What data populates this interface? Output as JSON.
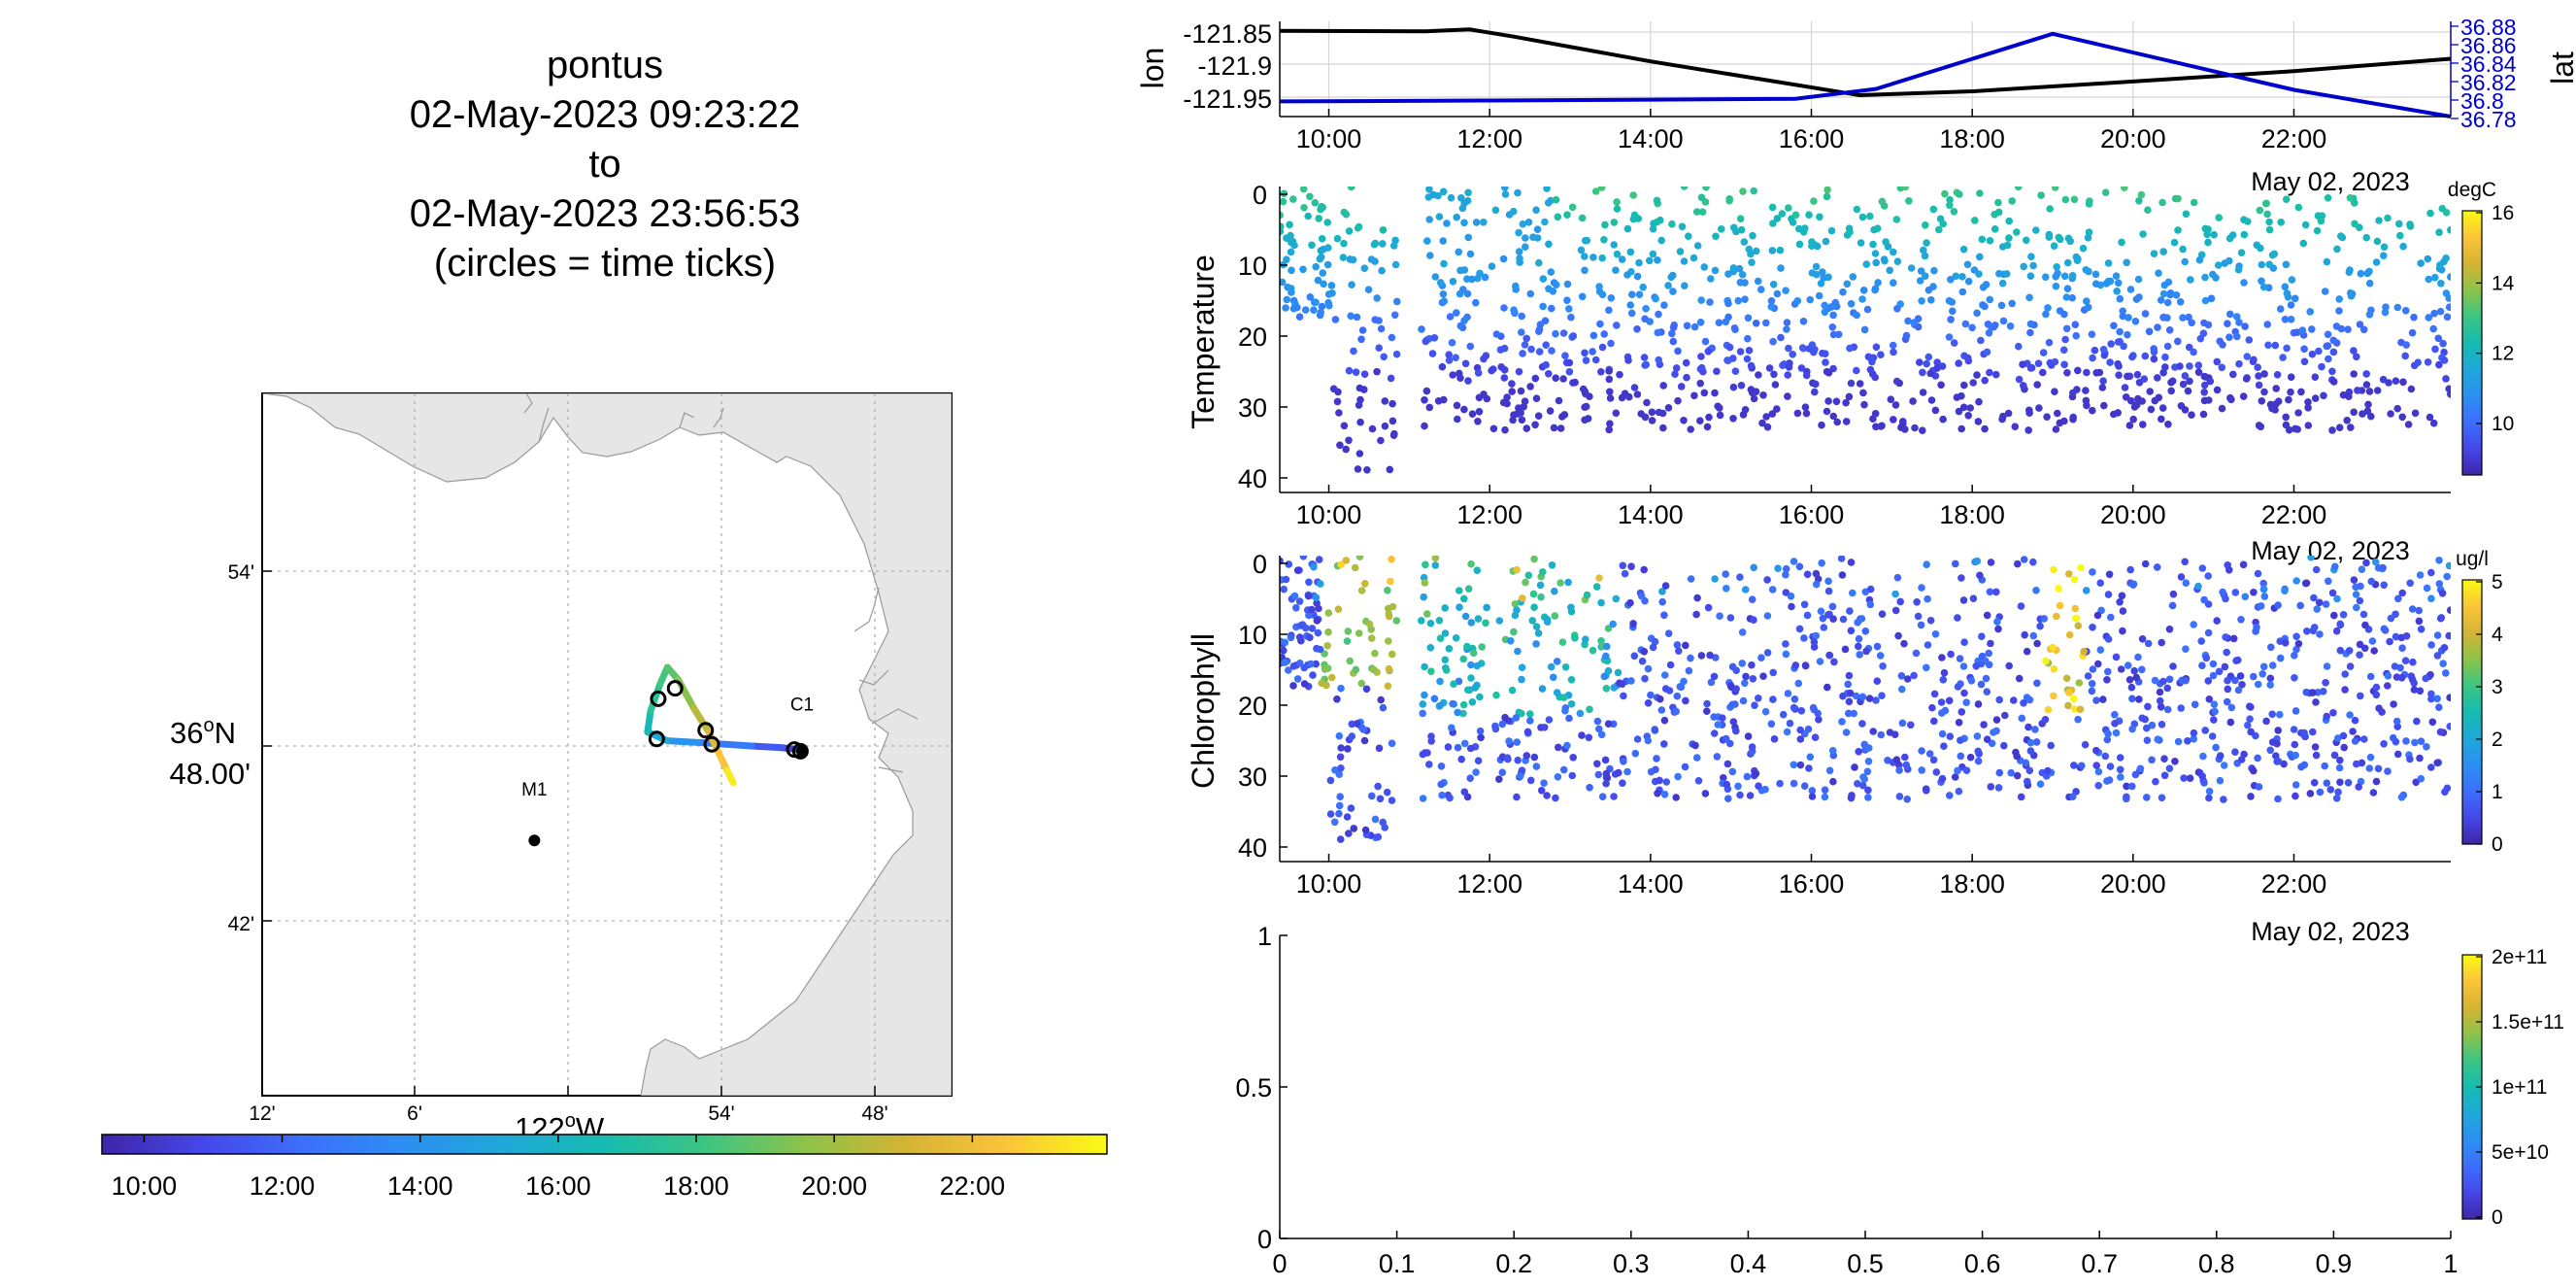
{
  "title": {
    "lines": [
      "pontus",
      "02-May-2023 09:23:22",
      "to",
      "02-May-2023 23:56:53",
      "(circles = time ticks)"
    ]
  },
  "colors": {
    "land": "#e6e6e6",
    "grid": "#b0b0b0",
    "lat_axis": "#0000cc",
    "lon_line": "#000000",
    "viridis": [
      "#3e26a8",
      "#4547e8",
      "#3d6ffc",
      "#2c8ff2",
      "#1fa8d8",
      "#16bbb0",
      "#3cc582",
      "#8ec24a",
      "#d4b434",
      "#fbc43a",
      "#f9fa14"
    ]
  },
  "chart_data": [
    {
      "id": "track_map",
      "type": "map",
      "lat_ticks": [
        "54'",
        "48.00'",
        "42'"
      ],
      "lat_degree_label": "36",
      "lat_hemisphere": "N",
      "lon_ticks": [
        "12'",
        "6'",
        "54'",
        "48'"
      ],
      "lon_degree_label": "122",
      "lon_hemisphere": "W",
      "degree_symbol": "o",
      "stations": [
        {
          "name": "C1",
          "lon": -121.847,
          "lat": 36.797
        },
        {
          "name": "M1",
          "lon": -122.022,
          "lat": 36.746
        }
      ],
      "track": [
        {
          "t": 9.39,
          "lon": -121.846,
          "lat": 36.797
        },
        {
          "t": 10.0,
          "lon": -121.85,
          "lat": 36.798
        },
        {
          "t": 11.0,
          "lon": -121.86,
          "lat": 36.799
        },
        {
          "t": 12.0,
          "lon": -121.88,
          "lat": 36.8
        },
        {
          "t": 13.5,
          "lon": -121.915,
          "lat": 36.802
        },
        {
          "t": 14.5,
          "lon": -121.935,
          "lat": 36.803
        },
        {
          "t": 16.1,
          "lon": -121.948,
          "lat": 36.808
        },
        {
          "t": 17.0,
          "lon": -121.946,
          "lat": 36.82
        },
        {
          "t": 18.0,
          "lon": -121.94,
          "lat": 36.835
        },
        {
          "t": 18.4,
          "lon": -121.935,
          "lat": 36.845
        },
        {
          "t": 19.0,
          "lon": -121.928,
          "lat": 36.838
        },
        {
          "t": 20.0,
          "lon": -121.918,
          "lat": 36.822
        },
        {
          "t": 21.0,
          "lon": -121.908,
          "lat": 36.808
        },
        {
          "t": 22.0,
          "lon": -121.902,
          "lat": 36.797
        },
        {
          "t": 23.0,
          "lon": -121.896,
          "lat": 36.786
        },
        {
          "t": 23.95,
          "lon": -121.892,
          "lat": 36.779
        }
      ],
      "time_circles": [
        {
          "lon": -121.848,
          "lat": 36.797
        },
        {
          "lon": -121.852,
          "lat": 36.798
        },
        {
          "lon": -121.906,
          "lat": 36.801
        },
        {
          "lon": -121.942,
          "lat": 36.804
        },
        {
          "lon": -121.941,
          "lat": 36.827
        },
        {
          "lon": -121.93,
          "lat": 36.833
        },
        {
          "lon": -121.91,
          "lat": 36.809
        }
      ],
      "colorbar_ticks": [
        "10:00",
        "12:00",
        "14:00",
        "16:00",
        "18:00",
        "20:00",
        "22:00"
      ]
    },
    {
      "id": "position",
      "type": "line",
      "ylabel": "lon",
      "ylabel_right": "lat",
      "yticks_left": [
        "-121.85",
        "-121.9",
        "-121.95"
      ],
      "yticks_right": [
        "36.88",
        "36.86",
        "36.84",
        "36.82",
        "36.8",
        "36.78"
      ],
      "xticks": [
        "10:00",
        "12:00",
        "14:00",
        "16:00",
        "18:00",
        "20:00",
        "22:00"
      ],
      "xdate_label": "May 02, 2023",
      "series": [
        {
          "x": [
            9.39,
            11.2,
            11.75,
            12.3,
            14,
            16.6,
            18,
            20,
            22,
            23.95
          ],
          "y": [
            -121.848,
            -121.849,
            -121.846,
            -121.857,
            -121.895,
            -121.947,
            -121.941,
            -121.926,
            -121.91,
            -121.891
          ]
        },
        {
          "x": [
            9.39,
            12,
            14,
            15.8,
            16.8,
            19,
            21,
            22,
            23.95
          ],
          "y": [
            36.795,
            36.796,
            36.797,
            36.798,
            36.809,
            36.871,
            36.829,
            36.808,
            36.778
          ]
        }
      ]
    },
    {
      "id": "temperature",
      "type": "scatter",
      "ylabel": "Temperature",
      "yticks": [
        "0",
        "10",
        "20",
        "30",
        "40"
      ],
      "ylim": [
        0,
        42
      ],
      "xlim": [
        9.39,
        23.95
      ],
      "xticks": [
        "10:00",
        "12:00",
        "14:00",
        "16:00",
        "18:00",
        "20:00",
        "22:00"
      ],
      "xdate_label": "May 02, 2023",
      "colorbar_label": "degC",
      "colorbar_ticks": [
        "16",
        "14",
        "12",
        "10"
      ],
      "clim": [
        8.5,
        16
      ]
    },
    {
      "id": "chlorophyll",
      "type": "scatter",
      "ylabel": "Chlorophyll",
      "yticks": [
        "0",
        "10",
        "20",
        "30",
        "40"
      ],
      "ylim": [
        0,
        42
      ],
      "xlim": [
        9.39,
        23.95
      ],
      "xticks": [
        "10:00",
        "12:00",
        "14:00",
        "16:00",
        "18:00",
        "20:00",
        "22:00"
      ],
      "xdate_label": "May 02, 2023",
      "colorbar_label": "ug/l",
      "colorbar_ticks": [
        "5",
        "4",
        "3",
        "2",
        "1",
        "0"
      ],
      "clim": [
        0,
        5
      ]
    },
    {
      "id": "empty",
      "type": "scatter",
      "yticks": [
        "1",
        "0.5",
        "0"
      ],
      "xticks": [
        "0",
        "0.1",
        "0.2",
        "0.3",
        "0.4",
        "0.5",
        "0.6",
        "0.7",
        "0.8",
        "0.9",
        "1"
      ],
      "colorbar_ticks": [
        "2e+11",
        "1.5e+11",
        "1e+11",
        "5e+10",
        "0"
      ]
    }
  ]
}
